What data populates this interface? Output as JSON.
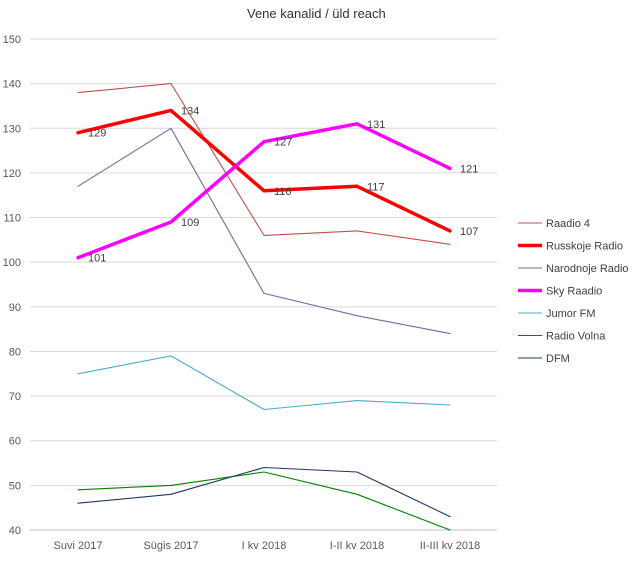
{
  "chart_data": {
    "type": "line",
    "title": "Vene kanalid / üld reach",
    "xlabel": "",
    "ylabel": "",
    "categories": [
      "Suvi 2017",
      "Sügis 2017",
      "I kv 2018",
      "I-II kv 2018",
      "II-III kv 2018"
    ],
    "ylim": [
      40,
      150
    ],
    "yticks": [
      40,
      50,
      60,
      70,
      80,
      90,
      100,
      110,
      120,
      130,
      140,
      150
    ],
    "grid": true,
    "legend_position": "right",
    "series": [
      {
        "name": "Raadio 4",
        "values": [
          138,
          140,
          106,
          107,
          104
        ],
        "color": "#c0504d",
        "weight": "thin",
        "labels": false
      },
      {
        "name": "Russkoje Radio",
        "values": [
          129,
          134,
          116,
          117,
          107
        ],
        "color": "#ff0000",
        "weight": "bold",
        "labels": true
      },
      {
        "name": "Narodnoje Radio",
        "values": [
          117,
          130,
          93,
          88,
          84
        ],
        "color": "#8064a2",
        "weight": "thin",
        "labels": false
      },
      {
        "name": "Sky Raadio",
        "values": [
          101,
          109,
          127,
          131,
          121
        ],
        "color": "#ff00ff",
        "weight": "bold",
        "labels": true
      },
      {
        "name": "Jumor FM",
        "values": [
          75,
          79,
          67,
          69,
          68
        ],
        "color": "#4bacc6",
        "weight": "thin",
        "labels": false
      },
      {
        "name": "Radio Volna",
        "values": [
          49,
          50,
          53,
          48,
          40
        ],
        "color": "#008000",
        "weight": "thin",
        "labels": false
      },
      {
        "name": "DFM",
        "values": [
          46,
          48,
          54,
          53,
          43
        ],
        "color": "#1f3864",
        "weight": "thin",
        "labels": false
      }
    ]
  }
}
